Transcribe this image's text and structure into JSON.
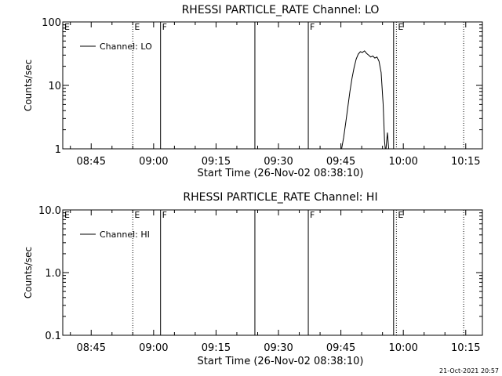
{
  "footer_timestamp": "21-Oct-2021 20:57",
  "chart_data": [
    {
      "type": "line",
      "title": "RHESSI PARTICLE_RATE Channel: LO",
      "xlabel": "Start Time (26-Nov-02 08:38:10)",
      "ylabel": "Counts/sec",
      "yscale": "log",
      "ylim": [
        1,
        100
      ],
      "y_ticks": [
        1,
        10,
        100
      ],
      "y_tick_labels": [
        "1",
        "10",
        "100"
      ],
      "xlim": [
        "08:38:10",
        "10:19:00"
      ],
      "x_ticks": [
        "08:45",
        "09:00",
        "09:15",
        "09:30",
        "09:45",
        "10:00",
        "10:15"
      ],
      "legend": {
        "label": "Channel: LO",
        "position": "top-left"
      },
      "markers": [
        {
          "time": "08:55:00",
          "style": "dotted",
          "label": "E"
        },
        {
          "time": "09:01:40",
          "style": "solid",
          "label": "F"
        },
        {
          "time": "09:24:20",
          "style": "solid",
          "label": ""
        },
        {
          "time": "09:37:10",
          "style": "solid",
          "label": "F"
        },
        {
          "time": "09:57:40",
          "style": "solid",
          "label": ""
        },
        {
          "time": "09:58:20",
          "style": "dotted",
          "label": "E"
        },
        {
          "time": "10:14:30",
          "style": "dotted",
          "label": ""
        }
      ],
      "edge_labels": [
        "E"
      ],
      "series": [
        {
          "name": "Channel: LO",
          "points": [
            [
              "09:45:10",
              1.0
            ],
            [
              "09:45:40",
              1.5
            ],
            [
              "09:46:10",
              2.6
            ],
            [
              "09:46:40",
              4.5
            ],
            [
              "09:47:10",
              8.0
            ],
            [
              "09:47:40",
              13
            ],
            [
              "09:48:10",
              19
            ],
            [
              "09:48:40",
              26
            ],
            [
              "09:49:10",
              31
            ],
            [
              "09:49:40",
              34
            ],
            [
              "09:50:10",
              33
            ],
            [
              "09:50:40",
              35
            ],
            [
              "09:51:10",
              32
            ],
            [
              "09:51:40",
              30
            ],
            [
              "09:52:10",
              28
            ],
            [
              "09:52:40",
              29
            ],
            [
              "09:53:10",
              27
            ],
            [
              "09:53:40",
              28
            ],
            [
              "09:54:10",
              24
            ],
            [
              "09:54:40",
              16
            ],
            [
              "09:55:10",
              5
            ],
            [
              "09:55:30",
              1.3
            ],
            [
              "09:55:40",
              1.0
            ]
          ]
        },
        {
          "name": "",
          "points": [
            [
              "09:55:50",
              1.0
            ],
            [
              "09:56:10",
              1.8
            ],
            [
              "09:56:30",
              1.0
            ]
          ]
        }
      ]
    },
    {
      "type": "line",
      "title": "RHESSI PARTICLE_RATE Channel: HI",
      "xlabel": "Start Time (26-Nov-02 08:38:10)",
      "ylabel": "Counts/sec",
      "yscale": "log",
      "ylim": [
        0.1,
        10
      ],
      "y_ticks": [
        0.1,
        1,
        10
      ],
      "y_tick_labels": [
        "0.1",
        "1.0",
        "10.0"
      ],
      "xlim": [
        "08:38:10",
        "10:19:00"
      ],
      "x_ticks": [
        "08:45",
        "09:00",
        "09:15",
        "09:30",
        "09:45",
        "10:00",
        "10:15"
      ],
      "legend": {
        "label": "Channel: HI",
        "position": "top-left"
      },
      "markers": [
        {
          "time": "08:55:00",
          "style": "dotted",
          "label": "E"
        },
        {
          "time": "09:01:40",
          "style": "solid",
          "label": "F"
        },
        {
          "time": "09:24:20",
          "style": "solid",
          "label": ""
        },
        {
          "time": "09:37:10",
          "style": "solid",
          "label": "F"
        },
        {
          "time": "09:57:40",
          "style": "solid",
          "label": ""
        },
        {
          "time": "09:58:20",
          "style": "dotted",
          "label": "E"
        },
        {
          "time": "10:14:30",
          "style": "dotted",
          "label": ""
        }
      ],
      "edge_labels": [
        "E"
      ],
      "series": []
    }
  ]
}
